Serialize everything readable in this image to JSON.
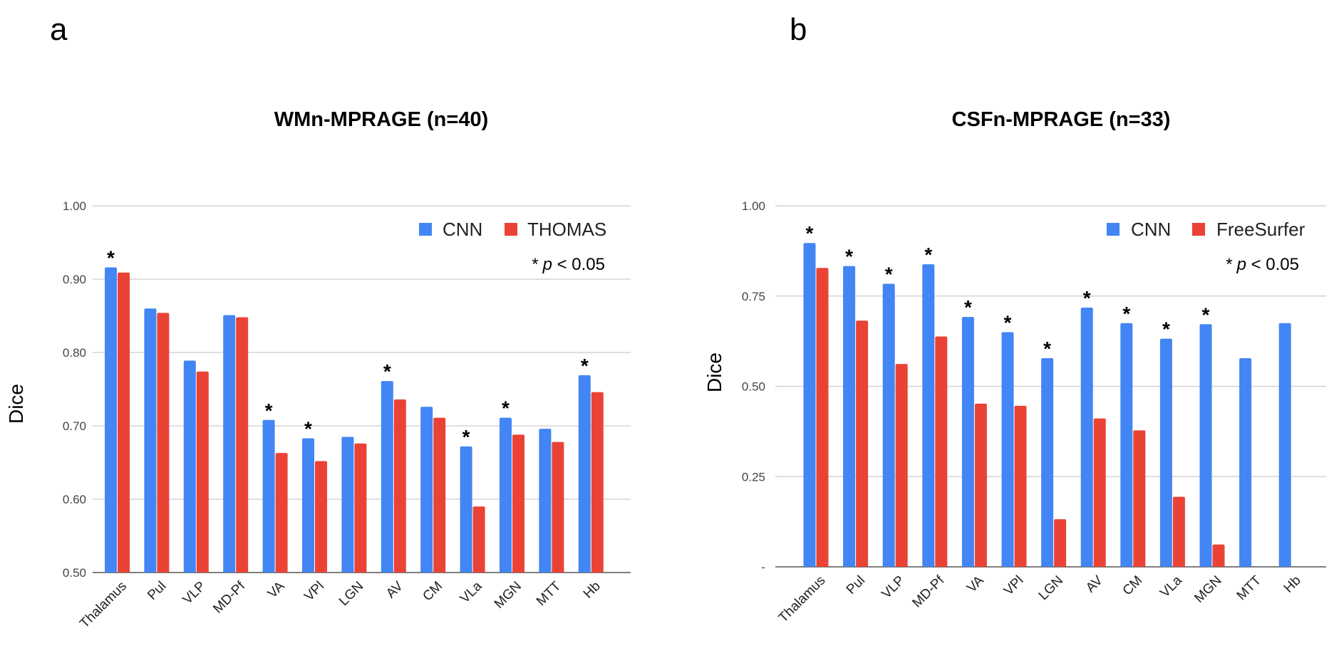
{
  "chart_data": [
    {
      "panel": "a",
      "type": "bar",
      "title": "WMn-MPRAGE (n=40)",
      "xlabel": "",
      "ylabel": "Dice",
      "ylim": [
        0.5,
        1.0
      ],
      "yticks": [
        "0.50",
        "0.60",
        "0.70",
        "0.80",
        "0.90",
        "1.00"
      ],
      "grid": true,
      "legend_position": "top-right",
      "significance_note": {
        "star": "*",
        "italic": "p",
        "rest": " < 0.05"
      },
      "categories": [
        "Thalamus",
        "Pul",
        "VLP",
        "MD-Pf",
        "VA",
        "VPl",
        "LGN",
        "AV",
        "CM",
        "VLa",
        "MGN",
        "MTT",
        "Hb"
      ],
      "series": [
        {
          "name": "CNN",
          "color": "#4285f4",
          "values": [
            0.916,
            0.86,
            0.789,
            0.851,
            0.708,
            0.683,
            0.685,
            0.761,
            0.726,
            0.672,
            0.711,
            0.696,
            0.769
          ]
        },
        {
          "name": "THOMAS",
          "color": "#ea4335",
          "values": [
            0.909,
            0.854,
            0.774,
            0.848,
            0.663,
            0.652,
            0.676,
            0.736,
            0.711,
            0.59,
            0.688,
            0.678,
            0.746
          ]
        }
      ],
      "significant": [
        true,
        false,
        false,
        false,
        true,
        true,
        false,
        true,
        false,
        true,
        true,
        false,
        true
      ]
    },
    {
      "panel": "b",
      "type": "bar",
      "title": "CSFn-MPRAGE (n=33)",
      "xlabel": "",
      "ylabel": "Dice",
      "ylim": [
        0,
        1.0
      ],
      "yticks": [
        "-",
        "0.25",
        "0.50",
        "0.75",
        "1.00"
      ],
      "grid": true,
      "legend_position": "top-right",
      "significance_note": {
        "star": "*",
        "italic": "p",
        "rest": " < 0.05"
      },
      "categories": [
        "Thalamus",
        "Pul",
        "VLP",
        "MD-Pf",
        "VA",
        "VPl",
        "LGN",
        "AV",
        "CM",
        "VLa",
        "MGN",
        "MTT",
        "Hb"
      ],
      "series": [
        {
          "name": "CNN",
          "color": "#4285f4",
          "values": [
            0.897,
            0.833,
            0.784,
            0.838,
            0.692,
            0.65,
            0.578,
            0.718,
            0.675,
            0.632,
            0.672,
            0.578,
            0.675
          ]
        },
        {
          "name": "FreeSurfer",
          "color": "#ea4335",
          "values": [
            0.828,
            0.682,
            0.562,
            0.638,
            0.452,
            0.446,
            0.132,
            0.411,
            0.378,
            0.194,
            0.062,
            null,
            null
          ]
        }
      ],
      "significant": [
        true,
        true,
        true,
        true,
        true,
        true,
        true,
        true,
        true,
        true,
        true,
        false,
        false
      ]
    }
  ]
}
